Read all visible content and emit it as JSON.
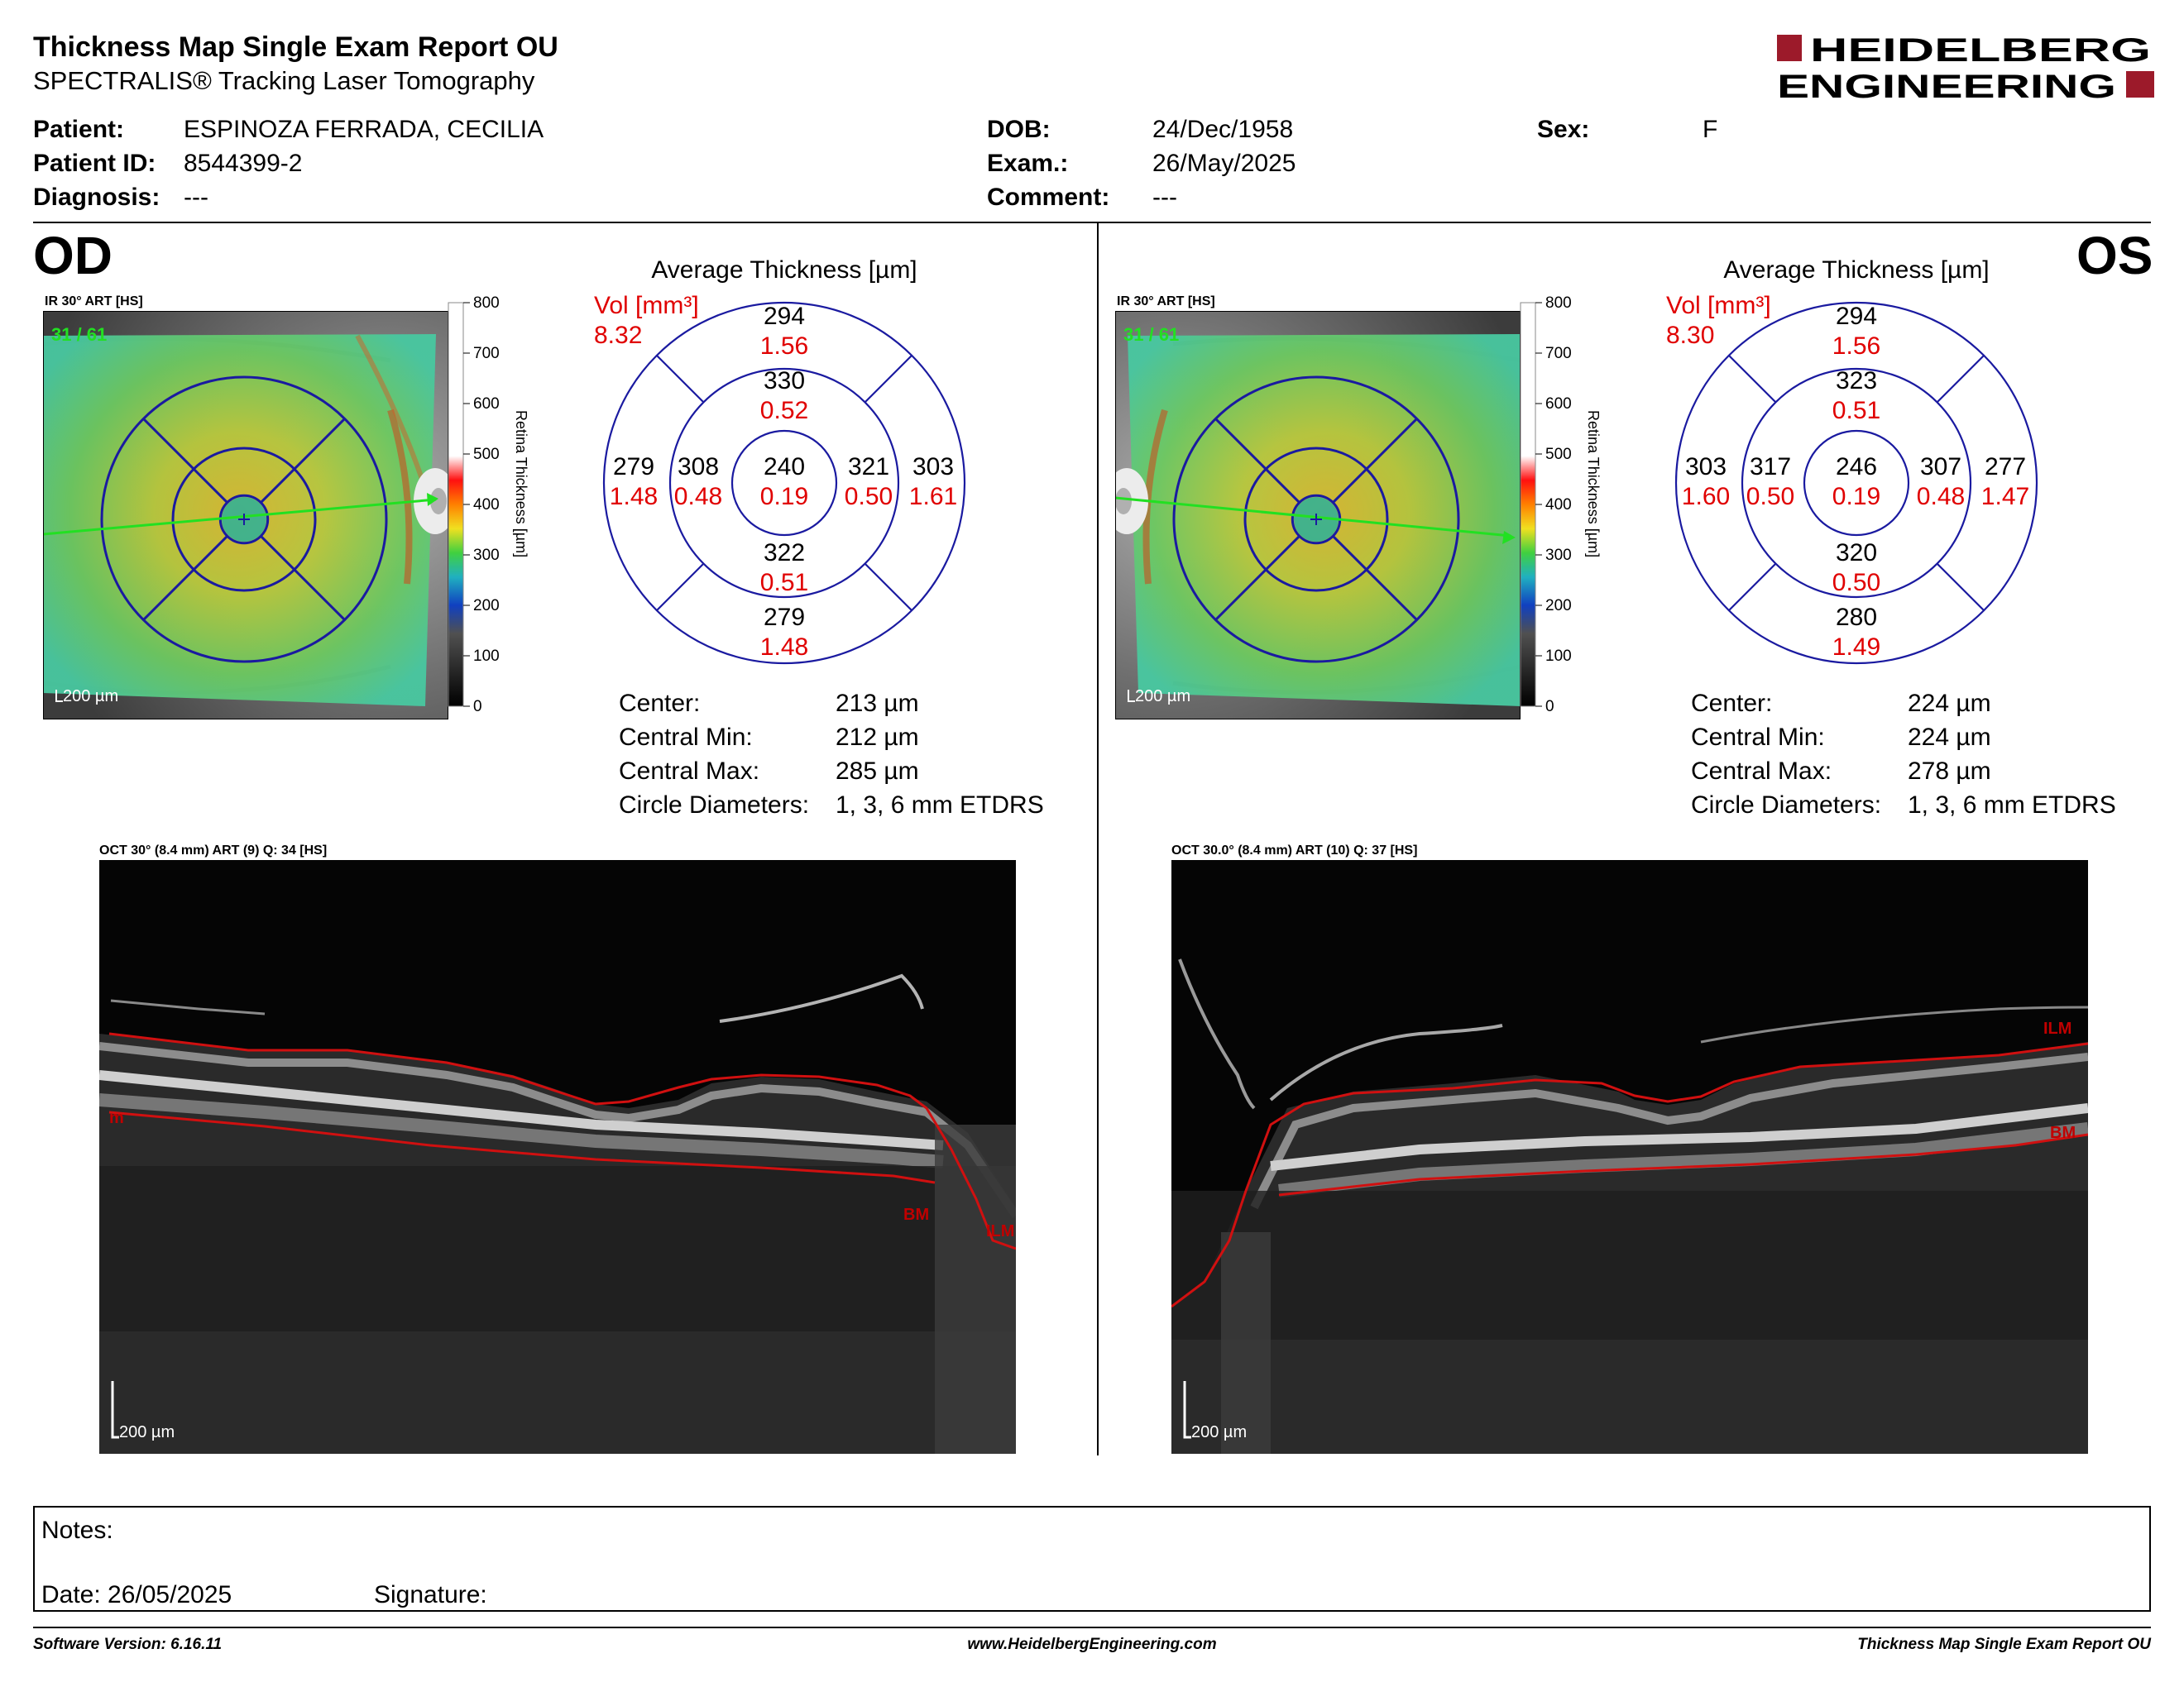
{
  "header": {
    "title": "Thickness Map Single Exam Report OU",
    "subtitle": "SPECTRALIS® Tracking Laser Tomography",
    "logo_line1": "HEIDELBERG",
    "logo_line2": "ENGINEERING"
  },
  "patient": {
    "patient_label": "Patient:",
    "patient_value": "ESPINOZA FERRADA, CECILIA",
    "id_label": "Patient ID:",
    "id_value": "8544399-2",
    "diagnosis_label": "Diagnosis:",
    "diagnosis_value": "---",
    "dob_label": "DOB:",
    "dob_value": "24/Dec/1958",
    "exam_label": "Exam.:",
    "exam_value": "26/May/2025",
    "comment_label": "Comment:",
    "comment_value": "---",
    "sex_label": "Sex:",
    "sex_value": "F"
  },
  "colors": {
    "red": "#e00000",
    "grid_blue": "#1a1aa0",
    "scan_green": "#22e022",
    "segmentation_red": "#d01010"
  },
  "od": {
    "eye_label": "OD",
    "ir_label": "IR 30° ART [HS]",
    "frame_counter": "31 / 61",
    "scale_bar": "200 µm",
    "colorbar_title": "Retina Thickness [µm]",
    "colorbar_ticks": [
      "800",
      "700",
      "600",
      "500",
      "400",
      "300",
      "200",
      "100",
      "0"
    ],
    "etdrs_title": "Average Thickness [µm]",
    "vol_label": "Vol [mm³]",
    "vol_value": "8.32",
    "sectors": {
      "outer_superior": {
        "thickness": "294",
        "volume": "1.56"
      },
      "inner_superior": {
        "thickness": "330",
        "volume": "0.52"
      },
      "outer_left": {
        "thickness": "279",
        "volume": "1.48"
      },
      "inner_left": {
        "thickness": "308",
        "volume": "0.48"
      },
      "center": {
        "thickness": "240",
        "volume": "0.19"
      },
      "inner_right": {
        "thickness": "321",
        "volume": "0.50"
      },
      "outer_right": {
        "thickness": "303",
        "volume": "1.61"
      },
      "inner_inferior": {
        "thickness": "322",
        "volume": "0.51"
      },
      "outer_inferior": {
        "thickness": "279",
        "volume": "1.48"
      }
    },
    "stats": {
      "center_label": "Center:",
      "center_value": "213 µm",
      "min_label": "Central Min:",
      "min_value": "212 µm",
      "max_label": "Central Max:",
      "max_value": "285 µm",
      "diam_label": "Circle Diameters:",
      "diam_value": "1, 3, 6 mm ETDRS"
    },
    "oct_label": "OCT 30° (8.4 mm) ART (9) Q: 34 [HS]",
    "oct_scale": "200 µm",
    "seg_labels": {
      "ilm": "ILM",
      "bm": "BM",
      "edge": "m"
    }
  },
  "os": {
    "eye_label": "OS",
    "ir_label": "IR 30° ART [HS]",
    "frame_counter": "31 / 61",
    "scale_bar": "200 µm",
    "colorbar_title": "Retina Thickness [µm]",
    "colorbar_ticks": [
      "800",
      "700",
      "600",
      "500",
      "400",
      "300",
      "200",
      "100",
      "0"
    ],
    "etdrs_title": "Average Thickness [µm]",
    "vol_label": "Vol [mm³]",
    "vol_value": "8.30",
    "sectors": {
      "outer_superior": {
        "thickness": "294",
        "volume": "1.56"
      },
      "inner_superior": {
        "thickness": "323",
        "volume": "0.51"
      },
      "outer_left": {
        "thickness": "303",
        "volume": "1.60"
      },
      "inner_left": {
        "thickness": "317",
        "volume": "0.50"
      },
      "center": {
        "thickness": "246",
        "volume": "0.19"
      },
      "inner_right": {
        "thickness": "307",
        "volume": "0.48"
      },
      "outer_right": {
        "thickness": "277",
        "volume": "1.47"
      },
      "inner_inferior": {
        "thickness": "320",
        "volume": "0.50"
      },
      "outer_inferior": {
        "thickness": "280",
        "volume": "1.49"
      }
    },
    "stats": {
      "center_label": "Center:",
      "center_value": "224 µm",
      "min_label": "Central Min:",
      "min_value": "224 µm",
      "max_label": "Central Max:",
      "max_value": "278 µm",
      "diam_label": "Circle Diameters:",
      "diam_value": "1, 3, 6 mm ETDRS"
    },
    "oct_label": "OCT 30.0° (8.4 mm) ART (10) Q: 37 [HS]",
    "oct_scale": "200 µm",
    "seg_labels": {
      "ilm": "ILM",
      "bm": "BM"
    }
  },
  "notes": {
    "notes_label": "Notes:",
    "date_label": "Date: 26/05/2025",
    "signature_label": "Signature:"
  },
  "footer": {
    "software": "Software Version: 6.16.11",
    "website": "www.HeidelbergEngineering.com",
    "report_name": "Thickness Map Single Exam Report OU"
  }
}
